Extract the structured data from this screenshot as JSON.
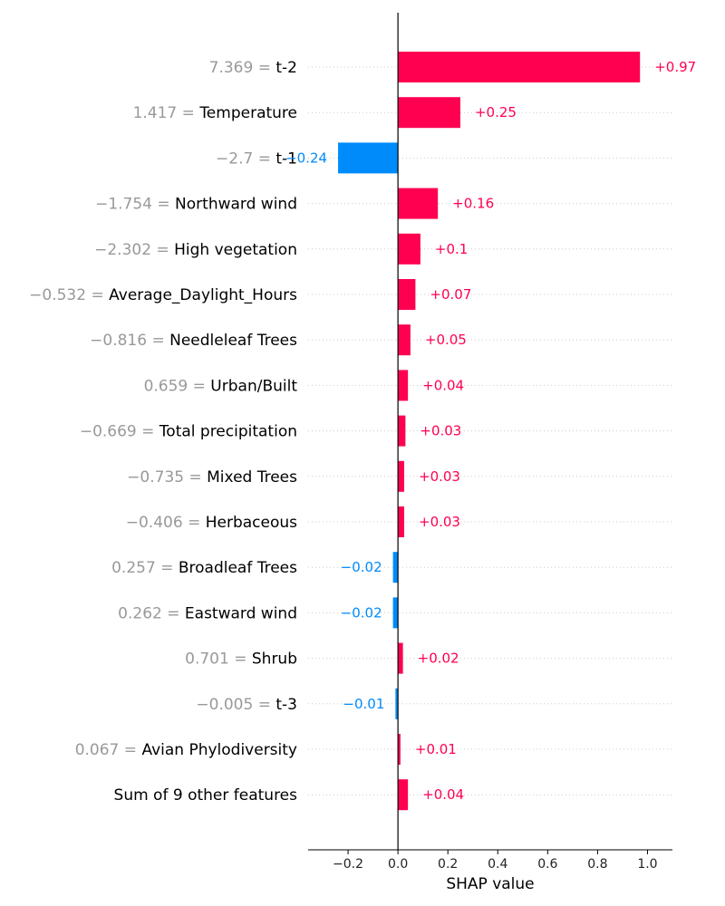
{
  "chart_data": {
    "type": "bar",
    "orientation": "horizontal",
    "title": "",
    "xlabel": "SHAP value",
    "ylabel": "",
    "xlim": [
      -0.36,
      1.1
    ],
    "xticks": [
      -0.2,
      0.0,
      0.2,
      0.4,
      0.6,
      0.8,
      1.0
    ],
    "xtick_labels": [
      "−0.2",
      "0.0",
      "0.2",
      "0.4",
      "0.6",
      "0.8",
      "1.0"
    ],
    "grid": true,
    "colors": {
      "positive": "#ff0051",
      "negative": "#008bfb"
    },
    "features": [
      {
        "value_text": "7.369 =",
        "name": "t-2",
        "shap": 0.97,
        "label": "+0.97"
      },
      {
        "value_text": "1.417 =",
        "name": "Temperature",
        "shap": 0.25,
        "label": "+0.25"
      },
      {
        "value_text": "−2.7 =",
        "name": "t-1",
        "shap": -0.24,
        "label": "−0.24"
      },
      {
        "value_text": "−1.754 =",
        "name": "Northward wind",
        "shap": 0.16,
        "label": "+0.16"
      },
      {
        "value_text": "−2.302 =",
        "name": "High vegetation",
        "shap": 0.09,
        "label": "+0.1"
      },
      {
        "value_text": "−0.532 =",
        "name": "Average_Daylight_Hours",
        "shap": 0.07,
        "label": "+0.07"
      },
      {
        "value_text": "−0.816 =",
        "name": "Needleleaf Trees",
        "shap": 0.05,
        "label": "+0.05"
      },
      {
        "value_text": "0.659 =",
        "name": "Urban/Built",
        "shap": 0.04,
        "label": "+0.04"
      },
      {
        "value_text": "−0.669 =",
        "name": "Total precipitation",
        "shap": 0.03,
        "label": "+0.03"
      },
      {
        "value_text": "−0.735 =",
        "name": "Mixed Trees",
        "shap": 0.025,
        "label": "+0.03"
      },
      {
        "value_text": "−0.406 =",
        "name": "Herbaceous",
        "shap": 0.025,
        "label": "+0.03"
      },
      {
        "value_text": "0.257 =",
        "name": "Broadleaf Trees",
        "shap": -0.02,
        "label": "−0.02"
      },
      {
        "value_text": "0.262 =",
        "name": "Eastward wind",
        "shap": -0.02,
        "label": "−0.02"
      },
      {
        "value_text": "0.701 =",
        "name": "Shrub",
        "shap": 0.02,
        "label": "+0.02"
      },
      {
        "value_text": "−0.005 =",
        "name": "t-3",
        "shap": -0.01,
        "label": "−0.01"
      },
      {
        "value_text": "0.067 =",
        "name": "Avian Phylodiversity",
        "shap": 0.01,
        "label": "+0.01"
      },
      {
        "value_text": "",
        "name": "Sum of 9 other features",
        "shap": 0.04,
        "label": "+0.04"
      }
    ]
  }
}
